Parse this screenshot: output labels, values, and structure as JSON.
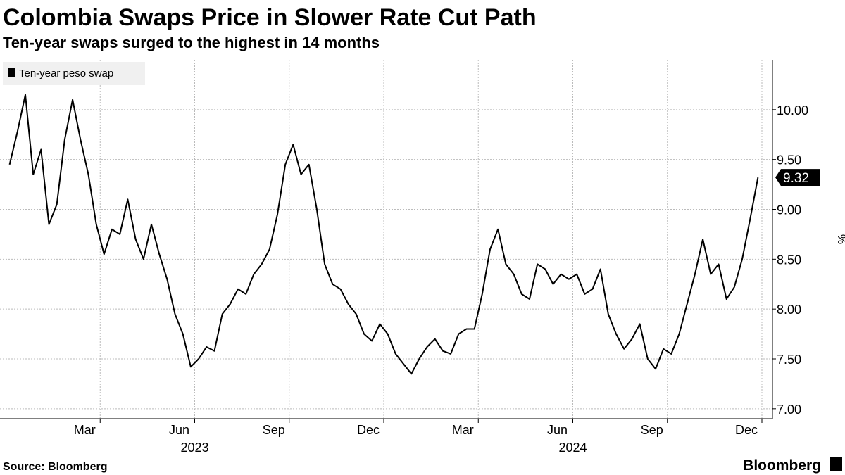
{
  "chart_data": {
    "type": "line",
    "title": "Colombia Swaps Price in Slower Rate Cut Path",
    "subtitle": "Ten-year swaps surged to the highest in 14 months",
    "source": "Source: Bloomberg",
    "brand": "Bloomberg",
    "y_label": "%",
    "x": [
      "2022-12",
      "2022-12",
      "2022-12",
      "2022-12",
      "2023-01",
      "2023-01",
      "2023-01",
      "2023-01",
      "2023-02",
      "2023-02",
      "2023-02",
      "2023-02",
      "2023-03",
      "2023-03",
      "2023-03",
      "2023-03",
      "2023-04",
      "2023-04",
      "2023-04",
      "2023-04",
      "2023-05",
      "2023-05",
      "2023-05",
      "2023-05",
      "2023-06",
      "2023-06",
      "2023-06",
      "2023-06",
      "2023-07",
      "2023-07",
      "2023-07",
      "2023-07",
      "2023-08",
      "2023-08",
      "2023-08",
      "2023-08",
      "2023-09",
      "2023-09",
      "2023-09",
      "2023-09",
      "2023-10",
      "2023-10",
      "2023-10",
      "2023-10",
      "2023-11",
      "2023-11",
      "2023-11",
      "2023-11",
      "2023-12",
      "2023-12",
      "2023-12",
      "2023-12",
      "2024-01",
      "2024-01",
      "2024-01",
      "2024-01",
      "2024-02",
      "2024-02",
      "2024-02",
      "2024-02",
      "2024-03",
      "2024-03",
      "2024-03",
      "2024-03",
      "2024-04",
      "2024-04",
      "2024-04",
      "2024-04",
      "2024-05",
      "2024-05",
      "2024-05",
      "2024-05",
      "2024-06",
      "2024-06",
      "2024-06",
      "2024-06",
      "2024-07",
      "2024-07",
      "2024-07",
      "2024-07",
      "2024-08",
      "2024-08",
      "2024-08",
      "2024-08",
      "2024-09",
      "2024-09",
      "2024-09",
      "2024-09",
      "2024-10",
      "2024-10",
      "2024-10",
      "2024-10",
      "2024-11",
      "2024-11",
      "2024-11",
      "2024-11"
    ],
    "series": [
      {
        "name": "Ten-year peso swap",
        "color": "#000000",
        "end_label": "9.32",
        "values": [
          9.45,
          9.78,
          10.15,
          9.35,
          9.6,
          8.85,
          9.05,
          9.7,
          10.1,
          9.7,
          9.35,
          8.85,
          8.55,
          8.8,
          8.75,
          9.1,
          8.7,
          8.5,
          8.85,
          8.55,
          8.3,
          7.95,
          7.75,
          7.42,
          7.5,
          7.62,
          7.58,
          7.95,
          8.05,
          8.2,
          8.15,
          8.35,
          8.45,
          8.6,
          8.95,
          9.45,
          9.65,
          9.35,
          9.45,
          9.0,
          8.45,
          8.25,
          8.2,
          8.05,
          7.95,
          7.75,
          7.68,
          7.85,
          7.75,
          7.55,
          7.45,
          7.35,
          7.5,
          7.62,
          7.7,
          7.58,
          7.55,
          7.75,
          7.8,
          7.8,
          8.15,
          8.6,
          8.8,
          8.45,
          8.35,
          8.15,
          8.1,
          8.45,
          8.4,
          8.25,
          8.35,
          8.3,
          8.35,
          8.15,
          8.2,
          8.4,
          7.95,
          7.75,
          7.6,
          7.7,
          7.85,
          7.5,
          7.4,
          7.6,
          7.55,
          7.75,
          8.05,
          8.35,
          8.7,
          8.35,
          8.45,
          8.1,
          8.22,
          8.5,
          8.9,
          9.32
        ]
      }
    ],
    "xlim": [
      "2022-12",
      "2024-12"
    ],
    "xticks": [
      {
        "value": "2023-03",
        "label": "Mar"
      },
      {
        "value": "2023-06",
        "label": "Jun"
      },
      {
        "value": "2023-09",
        "label": "Sep"
      },
      {
        "value": "2023-12",
        "label": "Dec"
      },
      {
        "value": "2024-03",
        "label": "Mar"
      },
      {
        "value": "2024-06",
        "label": "Jun"
      },
      {
        "value": "2024-09",
        "label": "Sep"
      },
      {
        "value": "2024-12",
        "label": "Dec"
      }
    ],
    "xyears": [
      {
        "value": "2023-06",
        "label": "2023"
      },
      {
        "value": "2024-06",
        "label": "2024"
      }
    ],
    "ylim": [
      6.9,
      10.5
    ],
    "yticks": [
      {
        "value": 7,
        "label": "7.00"
      },
      {
        "value": 7.5,
        "label": "7.50"
      },
      {
        "value": 8,
        "label": "8.00"
      },
      {
        "value": 8.5,
        "label": "8.50"
      },
      {
        "value": 9,
        "label": "9.00"
      },
      {
        "value": 9.5,
        "label": "9.50"
      },
      {
        "value": 10,
        "label": "10.00"
      }
    ],
    "grid": true,
    "legend": "top-left"
  }
}
